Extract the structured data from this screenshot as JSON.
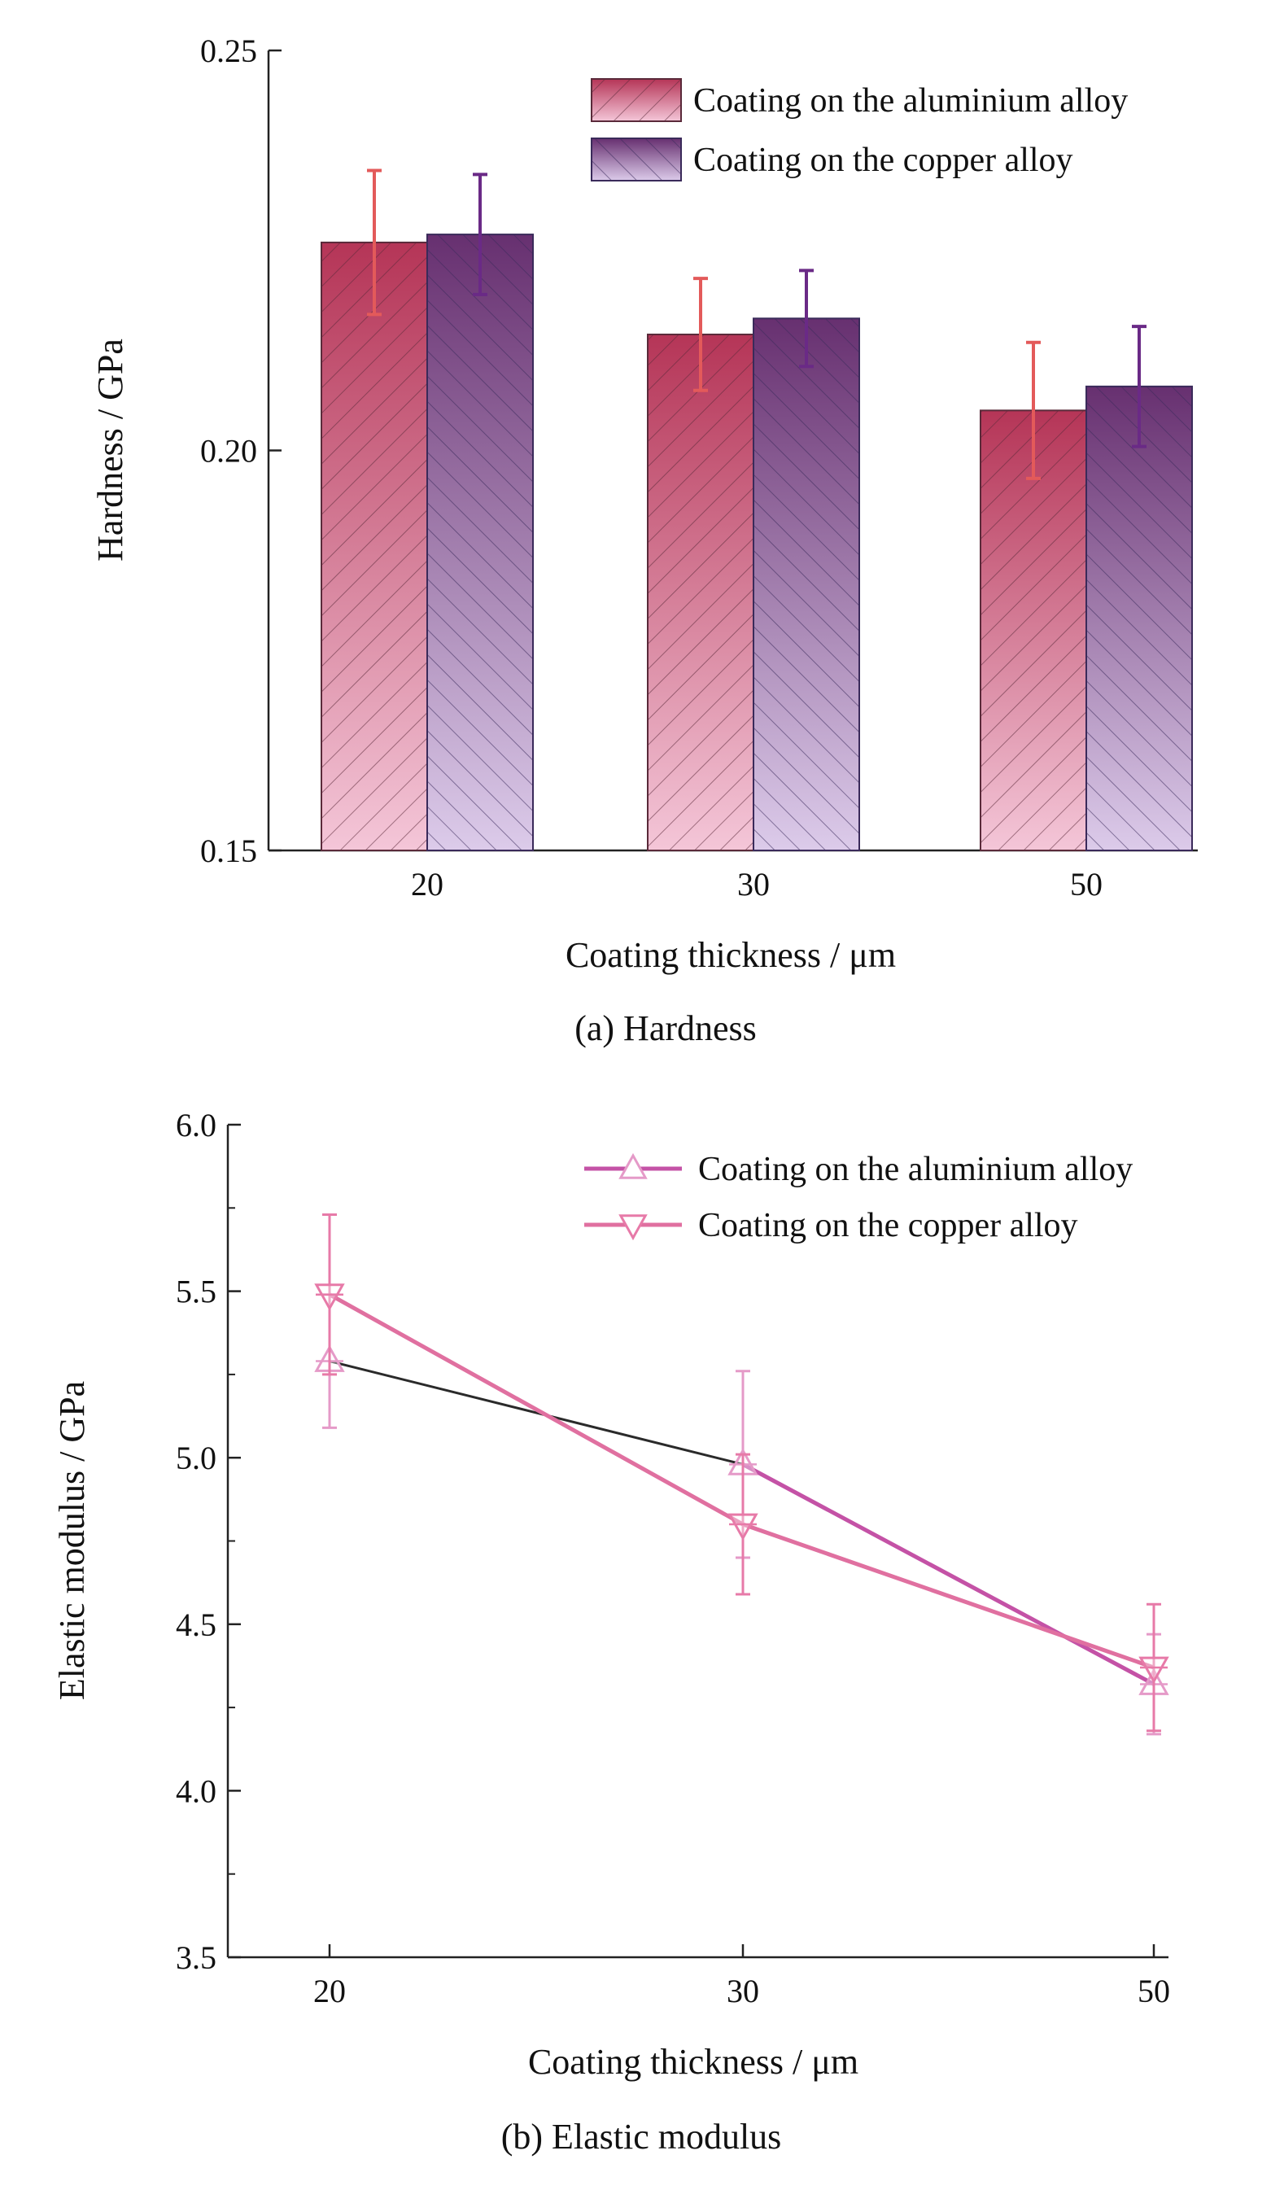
{
  "colors": {
    "aluminium_dark": "#b53557",
    "aluminium_light": "#f4c6d8",
    "copper_dark": "#673070",
    "copper_light": "#dccbea",
    "aluminium_error": "#e35a5a",
    "copper_error": "#6a2a86",
    "line_aluminium": "#c452a6",
    "line_copper": "#e070a0",
    "line_dark_segment": "#2a2a2a"
  },
  "chart_data": [
    {
      "type": "bar",
      "categories": [
        "20",
        "30",
        "50"
      ],
      "series": [
        {
          "name": "Coating on the aluminium alloy",
          "values": [
            0.226,
            0.2145,
            0.205
          ],
          "errors": [
            0.009,
            0.007,
            0.0085
          ]
        },
        {
          "name": "Coating on the copper alloy",
          "values": [
            0.227,
            0.2165,
            0.208
          ],
          "errors": [
            0.0075,
            0.006,
            0.0075
          ]
        }
      ],
      "title": "",
      "caption": "(a) Hardness",
      "xlabel": "Coating thickness / μm",
      "ylabel": "Hardness / GPa",
      "ylim": [
        0.15,
        0.25
      ],
      "yticks": [
        "0.15",
        "0.20",
        "0.25"
      ],
      "legend_position": "top-right",
      "grid": false
    },
    {
      "type": "line",
      "x": [
        "20",
        "30",
        "50"
      ],
      "series": [
        {
          "name": "Coating on the aluminium alloy",
          "marker": "triangle-up",
          "values": [
            5.29,
            4.98,
            4.32
          ],
          "errors": [
            0.2,
            0.28,
            0.15
          ]
        },
        {
          "name": "Coating on the copper alloy",
          "marker": "triangle-down",
          "values": [
            5.49,
            4.8,
            4.37
          ],
          "errors": [
            0.24,
            0.21,
            0.19
          ]
        }
      ],
      "title": "",
      "caption": "(b) Elastic modulus",
      "xlabel": "Coating thickness / μm",
      "ylabel": "Elastic modulus / GPa",
      "ylim": [
        3.5,
        6.0
      ],
      "yticks": [
        "3.5",
        "4.0",
        "4.5",
        "5.0",
        "5.5",
        "6.0"
      ],
      "legend_position": "top-right",
      "grid": false
    }
  ]
}
